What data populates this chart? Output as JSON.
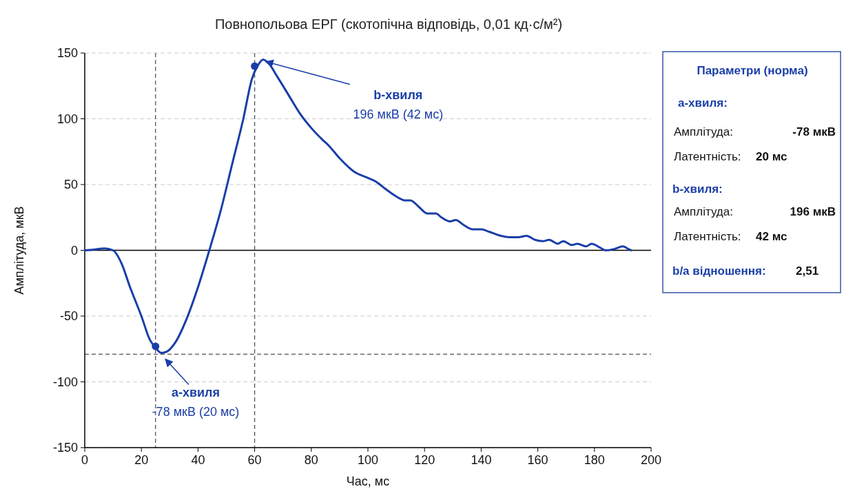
{
  "chart_data": {
    "type": "line",
    "title": "Повнопольова ЕРГ (скотопічна відповідь, 0,01 кд·с/м²)",
    "xlabel": "Час, мс",
    "ylabel": "Амплітуда, мкВ",
    "xlim": [
      0,
      200
    ],
    "xticks": [
      0,
      20,
      40,
      60,
      80,
      100,
      120,
      140,
      160,
      180,
      200
    ],
    "ylim": [
      -150,
      150
    ],
    "yticks": [
      -150,
      -100,
      -50,
      0,
      50,
      100,
      150
    ],
    "grid": "y",
    "series": [
      {
        "color": "#1a3ea8",
        "line_style": "solid",
        "marker": "none",
        "x": [
          0,
          3,
          7,
          10,
          13,
          16,
          20,
          23,
          25,
          27,
          29,
          32,
          36,
          40,
          44,
          48,
          52,
          56,
          59,
          61,
          63,
          65,
          68,
          72,
          76,
          80,
          84,
          86,
          90,
          95,
          100,
          103,
          106,
          110,
          113,
          115,
          118,
          121,
          124,
          126,
          129,
          131,
          134,
          137,
          140,
          143,
          147,
          150,
          153,
          156,
          159,
          162,
          164,
          167,
          169,
          172,
          174,
          177,
          179,
          182,
          184,
          187,
          190,
          192,
          193
        ],
        "values": [
          0,
          0.5,
          1.5,
          0,
          -10,
          -28,
          -50,
          -68,
          -74,
          -78,
          -77,
          -70,
          -52,
          -28,
          0,
          30,
          65,
          100,
          130,
          140,
          145,
          142,
          132,
          118,
          104,
          93,
          84,
          80,
          70,
          60,
          55,
          52,
          47,
          41,
          38,
          38,
          33,
          28,
          28,
          25,
          22,
          23,
          19,
          16,
          16,
          14,
          11,
          10,
          10,
          11,
          8,
          7,
          8,
          5,
          7,
          4,
          5,
          3,
          5,
          2,
          0,
          1,
          3,
          1,
          0
        ]
      },
      {
        "type": "scatter",
        "color": "#1a3ea8",
        "marker": "circle",
        "x": [
          25,
          60
        ],
        "values": [
          -73,
          140
        ]
      }
    ],
    "ref_lines": [
      {
        "axis": "y",
        "value": 0,
        "color": "#000000",
        "line_style": "solid"
      },
      {
        "axis": "x",
        "value": 25,
        "color": "#555555",
        "line_style": "dashed"
      },
      {
        "axis": "x",
        "value": 60,
        "color": "#555555",
        "line_style": "dashed"
      },
      {
        "axis": "y",
        "value": -79,
        "color": "#555555",
        "line_style": "dashed"
      }
    ],
    "annotations": [
      {
        "text": "a-хвиля\n-78 мкВ (20 мс)",
        "x": 27,
        "y": -79
      },
      {
        "text": "b-хвиля\n196 мкВ (42 мс)",
        "x": 62,
        "y": 145
      },
      "Параметри (норма)",
      "a-хвиля:",
      "Амплітуда:",
      "-78 мкВ",
      "Латентність:",
      "20 мс",
      "b-хвиля:",
      "Амплітуда:",
      "196 мкВ",
      "Латентність:",
      "42 мс",
      "b/a відношення:",
      "2,51"
    ]
  }
}
